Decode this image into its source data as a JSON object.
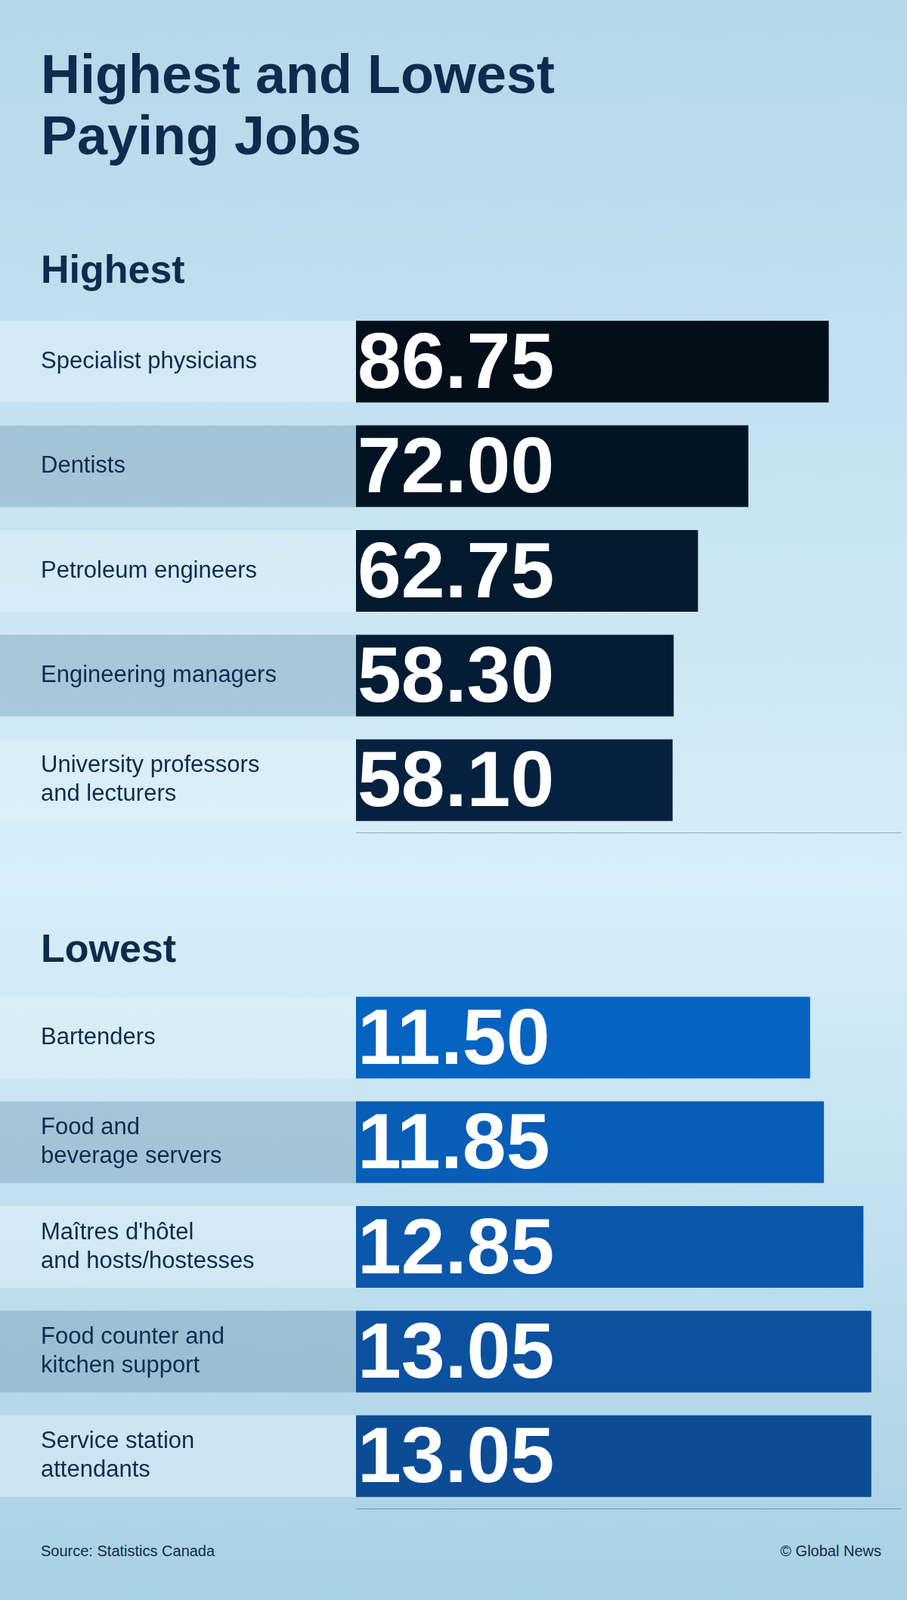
{
  "title": "Highest and Lowest Paying Jobs",
  "source": "Source: Statistics Canada",
  "credit": "© Global News",
  "chart_data": [
    {
      "type": "bar",
      "title": "Highest",
      "orientation": "horizontal",
      "categories": [
        "Specialist physicians",
        "Dentists",
        "Petroleum engineers",
        "Engineering managers",
        "University professors and lecturers"
      ],
      "values": [
        86.75,
        72.0,
        62.75,
        58.3,
        58.1
      ],
      "value_labels": [
        "86.75",
        "72.00",
        "62.75",
        "58.30",
        "58.10"
      ],
      "colors": [
        "#020e18",
        "#021424",
        "#03192e",
        "#041c36",
        "#05213f"
      ],
      "xlim": [
        0,
        100
      ],
      "data_labels": true,
      "grid": false,
      "tick_labels": "y"
    },
    {
      "type": "bar",
      "title": "Lowest",
      "orientation": "horizontal",
      "categories": [
        "Bartenders",
        "Food and beverage servers",
        "Maîtres d'hôtel and hosts/hostesses",
        "Food counter and kitchen support",
        "Service station attendants"
      ],
      "values": [
        11.5,
        11.85,
        12.85,
        13.05,
        13.05
      ],
      "value_labels": [
        "11.50",
        "11.85",
        "12.85",
        "13.05",
        "13.05"
      ],
      "colors": [
        "#0563c2",
        "#085db7",
        "#0a57ab",
        "#0b51a0",
        "#0c4c95"
      ],
      "xlim": [
        0,
        13.8
      ],
      "data_labels": true,
      "grid": false,
      "tick_labels": "y"
    }
  ]
}
